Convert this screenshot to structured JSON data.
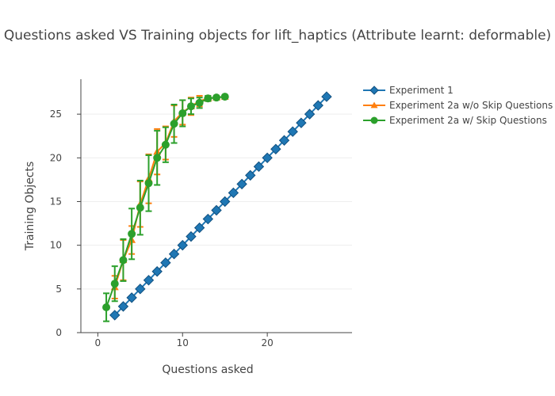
{
  "chart_data": {
    "type": "line",
    "title": "Questions asked VS Training objects for lift_haptics (Attribute learnt: deformable)",
    "xlabel": "Questions asked",
    "ylabel": "Training Objects",
    "xlim": [
      -2,
      30
    ],
    "ylim": [
      0,
      29
    ],
    "xticks": [
      0,
      10,
      20
    ],
    "yticks": [
      0,
      5,
      10,
      15,
      20,
      25
    ],
    "grid": "horizontal",
    "legend_position": "top-right",
    "series": [
      {
        "name": "Experiment 1",
        "color": "#1f77b4",
        "marker": "diamond",
        "x": [
          2,
          3,
          4,
          5,
          6,
          7,
          8,
          9,
          10,
          11,
          12,
          13,
          14,
          15,
          16,
          17,
          18,
          19,
          20,
          21,
          22,
          23,
          24,
          25,
          26,
          27
        ],
        "y": [
          2,
          3,
          4,
          5,
          6,
          7,
          8,
          9,
          10,
          11,
          12,
          13,
          14,
          15,
          16,
          17,
          18,
          19,
          20,
          21,
          22,
          23,
          24,
          25,
          26,
          27
        ]
      },
      {
        "name": "Experiment 2a w/o Skip Questions",
        "color": "#ff7f0e",
        "marker": "triangle-up",
        "x": [
          2,
          3,
          4,
          5,
          6,
          7,
          8,
          9,
          10,
          11,
          12,
          13,
          14,
          15
        ],
        "y": [
          5.2,
          8.3,
          10.6,
          14.7,
          17.6,
          20.7,
          21.7,
          24.2,
          25.2,
          25.9,
          26.5,
          26.8,
          26.9,
          27.0
        ],
        "err": [
          1.3,
          2.3,
          1.6,
          2.6,
          2.8,
          2.6,
          1.9,
          1.8,
          1.4,
          1.0,
          0.6,
          0.3,
          0.2,
          0
        ]
      },
      {
        "name": "Experiment 2a w/ Skip Questions",
        "color": "#2ca02c",
        "marker": "circle",
        "x": [
          1,
          2,
          3,
          4,
          5,
          6,
          7,
          8,
          9,
          10,
          11,
          12,
          13,
          14,
          15
        ],
        "y": [
          2.9,
          5.6,
          8.3,
          11.3,
          14.3,
          17.1,
          20.0,
          21.5,
          23.9,
          25.1,
          25.9,
          26.3,
          26.8,
          26.9,
          27.0
        ],
        "err": [
          1.6,
          2.0,
          2.4,
          2.9,
          3.1,
          3.2,
          3.1,
          2.0,
          2.2,
          1.5,
          0.9,
          0.6,
          0.3,
          0.2,
          0
        ]
      }
    ]
  }
}
